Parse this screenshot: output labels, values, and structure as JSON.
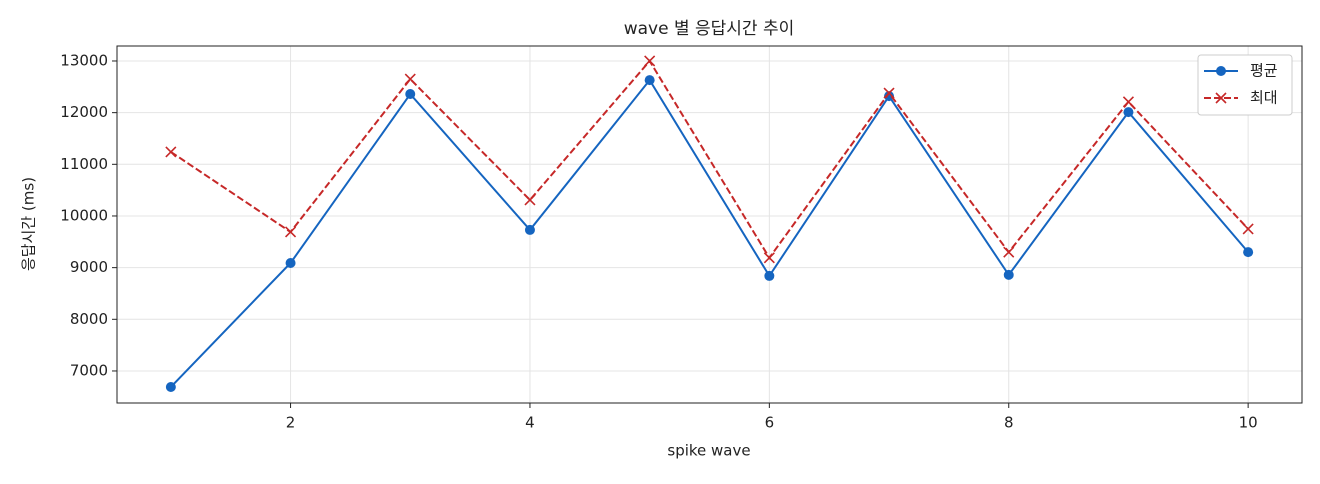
{
  "chart_data": {
    "type": "line",
    "title": "wave 별 응답시간 추이",
    "x_label": "spike wave",
    "y_label": "응답시간 (ms)",
    "x": [
      1,
      2,
      3,
      4,
      5,
      6,
      7,
      8,
      9,
      10
    ],
    "series": [
      {
        "name": "평균",
        "color": "#1565c0",
        "marker": "o",
        "linestyle": "solid",
        "values": [
          6690,
          9090,
          12360,
          9730,
          12630,
          8840,
          12320,
          8860,
          12010,
          9300
        ]
      },
      {
        "name": "최대",
        "color": "#c62828",
        "marker": "x",
        "linestyle": "dashed",
        "values": [
          11240,
          9690,
          12650,
          10310,
          13000,
          9190,
          12380,
          9300,
          12210,
          9750
        ]
      }
    ],
    "xlim": [
      0.55,
      10.45
    ],
    "xticks": [
      2,
      4,
      6,
      8,
      10
    ],
    "ylim": [
      6380,
      13290
    ],
    "yticks": [
      7000,
      8000,
      9000,
      10000,
      11000,
      12000,
      13000
    ],
    "grid": true,
    "legend": "upper right"
  }
}
